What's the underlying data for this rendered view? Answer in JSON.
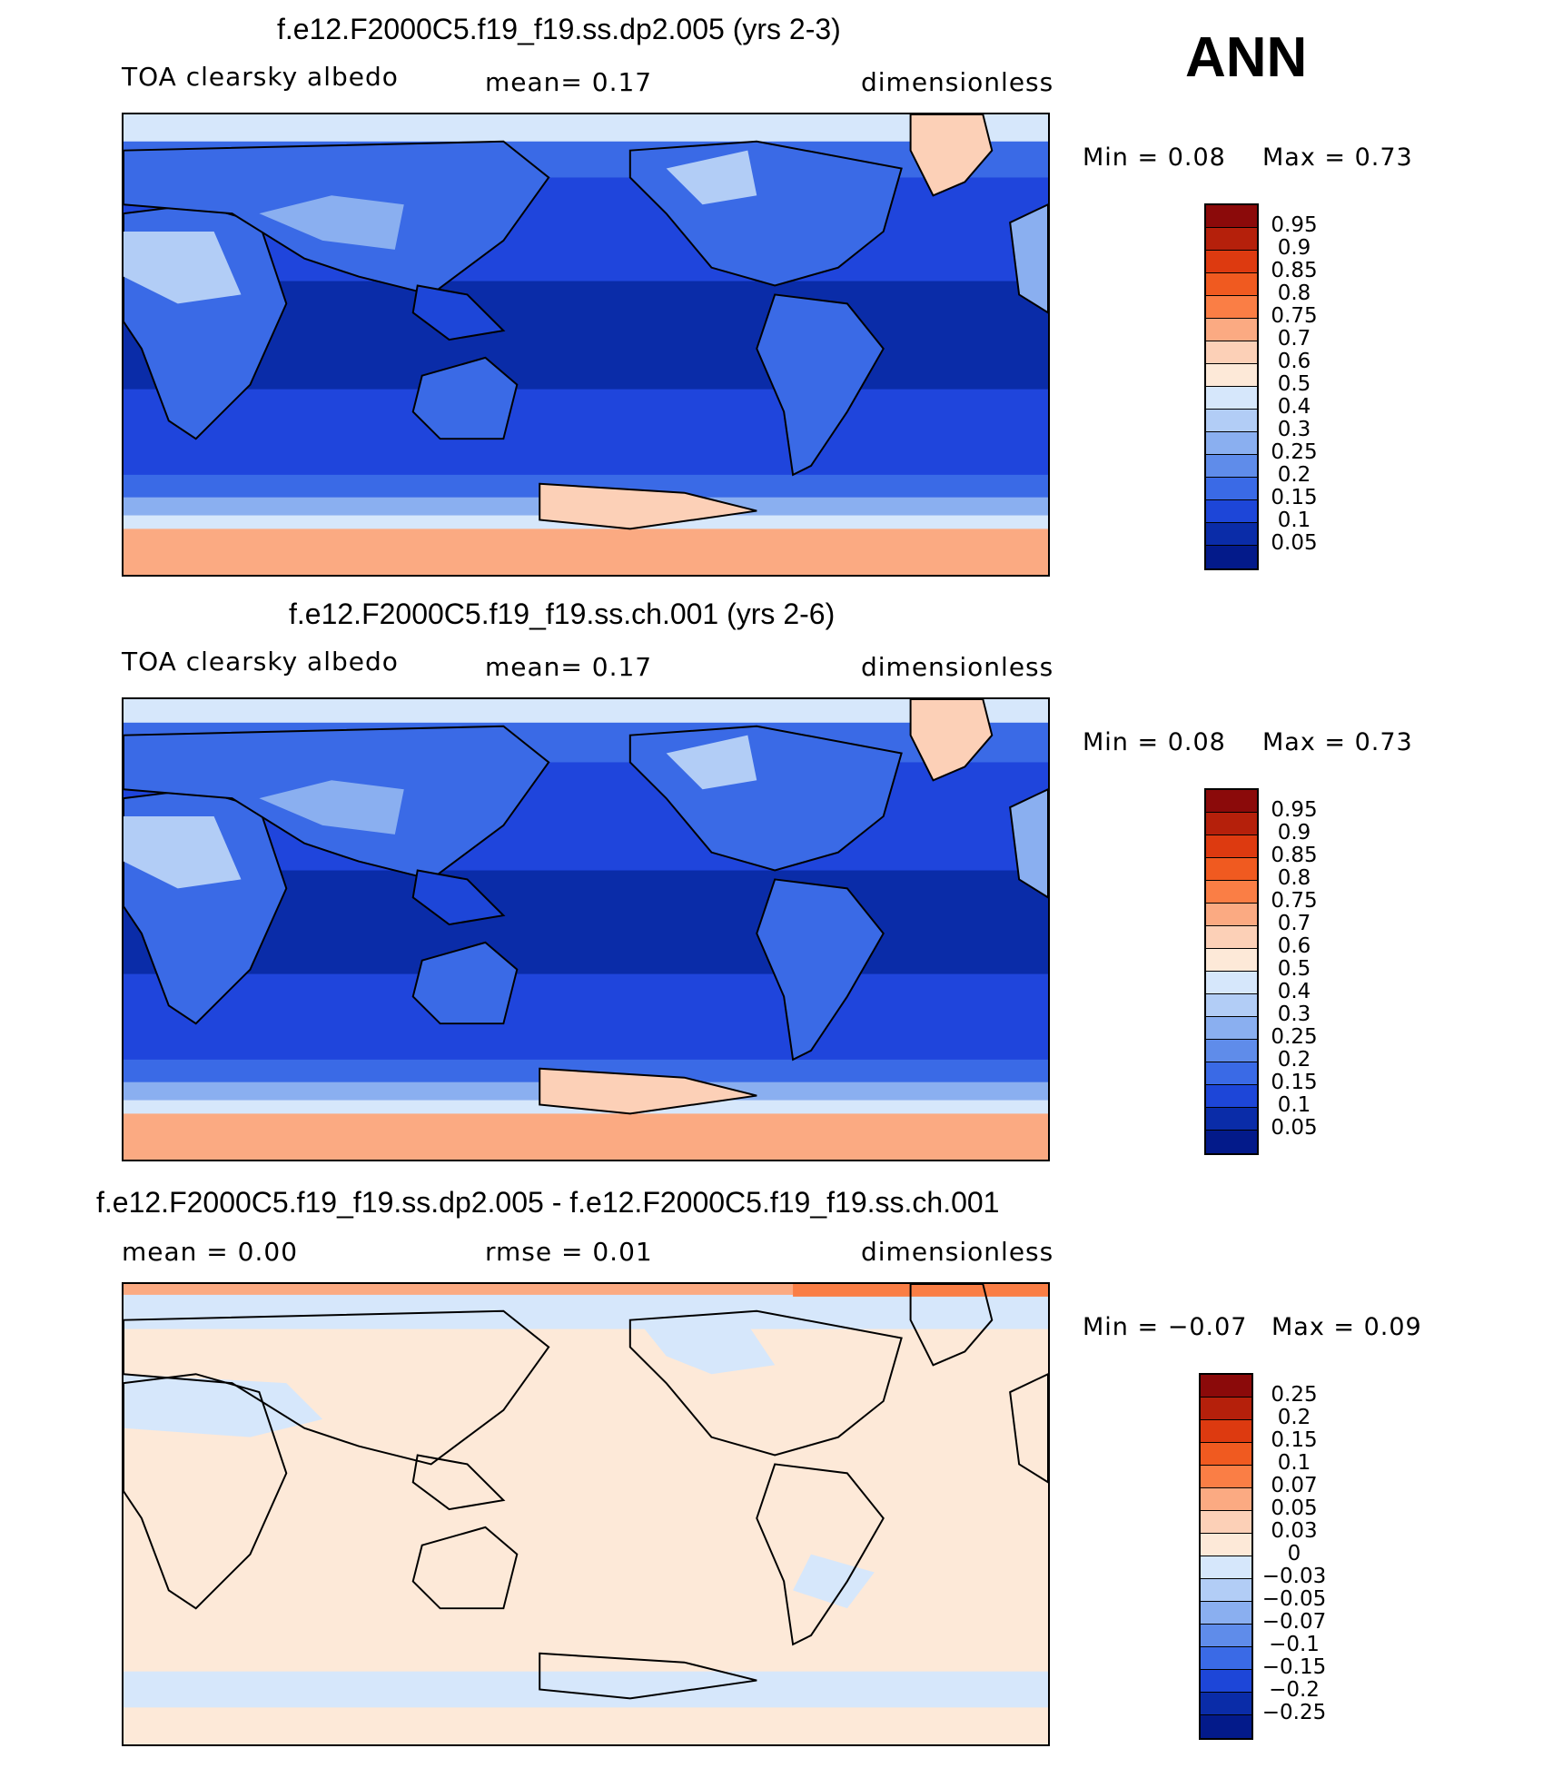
{
  "season": "ANN",
  "panels": [
    {
      "title": "f.e12.F2000C5.f19_f19.ss.dp2.005 (yrs 2-3)",
      "left_label": "TOA clearsky albedo",
      "mid_label": "mean=    0.17",
      "right_label": "dimensionless",
      "min_label": "Min  =     0.08",
      "max_label": "Max  =     0.73",
      "palette": "albedo",
      "colorbar_labels": [
        "0.95",
        "0.9",
        "0.85",
        "0.8",
        "0.75",
        "0.7",
        "0.6",
        "0.5",
        "0.4",
        "0.3",
        "0.25",
        "0.2",
        "0.15",
        "0.1",
        "0.05"
      ]
    },
    {
      "title": "f.e12.F2000C5.f19_f19.ss.ch.001 (yrs 2-6)",
      "left_label": "TOA clearsky albedo",
      "mid_label": "mean=    0.17",
      "right_label": "dimensionless",
      "min_label": "Min  =     0.08",
      "max_label": "Max  =     0.73",
      "palette": "albedo",
      "colorbar_labels": [
        "0.95",
        "0.9",
        "0.85",
        "0.8",
        "0.75",
        "0.7",
        "0.6",
        "0.5",
        "0.4",
        "0.3",
        "0.25",
        "0.2",
        "0.15",
        "0.1",
        "0.05"
      ]
    },
    {
      "title": "f.e12.F2000C5.f19_f19.ss.dp2.005 - f.e12.F2000C5.f19_f19.ss.ch.001",
      "left_label": "mean  =     0.00",
      "mid_label": "rmse  =     0.01",
      "right_label": "dimensionless",
      "min_label": "Min  =   −0.07",
      "max_label": "Max  =     0.09",
      "palette": "diff",
      "colorbar_labels": [
        "0.25",
        "0.2",
        "0.15",
        "0.1",
        "0.07",
        "0.05",
        "0.03",
        "0",
        "−0.03",
        "−0.05",
        "−0.07",
        "−0.1",
        "−0.15",
        "−0.2",
        "−0.25"
      ]
    }
  ],
  "colors": {
    "colorbar": [
      "#8b0a0a",
      "#b5200b",
      "#dd3a10",
      "#f05a20",
      "#fa7e45",
      "#fbaa82",
      "#fcd0b7",
      "#fde9d8",
      "#d6e7fb",
      "#b2cdf6",
      "#8aaff0",
      "#5f8cea",
      "#3a6ae6",
      "#1d46d8",
      "#0a2ca8",
      "#031a8a"
    ],
    "land_coast": "#000000"
  }
}
